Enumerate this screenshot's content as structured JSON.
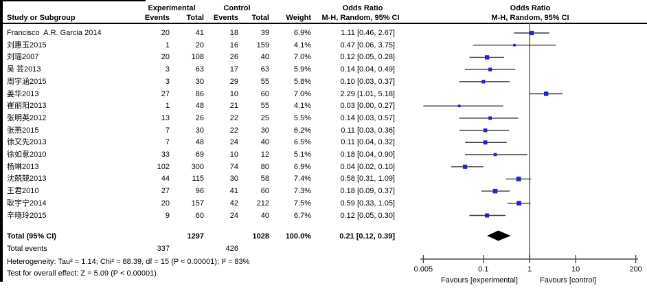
{
  "table": {
    "group_headers": {
      "experimental": "Experimental",
      "control": "Control",
      "odds_ratio_left": "Odds Ratio",
      "odds_ratio_right": "Odds Ratio"
    },
    "col_headers": {
      "study": "Study or Subgroup",
      "events_exp": "Events",
      "total_exp": "Total",
      "events_ctl": "Events",
      "total_ctl": "Total",
      "weight": "Weight",
      "mh_left": "M-H, Random, 95% CI",
      "mh_right": "M-H, Random, 95% CI"
    }
  },
  "chart_data": {
    "type": "forest",
    "effect_measure": "Odds Ratio, M-H, Random, 95% CI",
    "x_axis": {
      "scale": "log",
      "ticks": [
        0.005,
        0.1,
        1,
        10,
        200
      ],
      "tick_labels": [
        "0.005",
        "0.1",
        "1",
        "10",
        "200"
      ],
      "ref_line": 1,
      "left_label": "Favours [experimental]",
      "right_label": "Favours [control]"
    },
    "studies": [
      {
        "name": "Francisco  A.R. Garcia 2014",
        "events_exp": "20",
        "total_exp": "41",
        "events_ctl": "18",
        "total_ctl": "39",
        "weight": 6.9,
        "weight_label": "6.9%",
        "or": 1.11,
        "ci_low": 0.46,
        "ci_high": 2.67,
        "or_label": "1.11 [0.46, 2.67]"
      },
      {
        "name": "刘惠玉2015",
        "events_exp": "1",
        "total_exp": "20",
        "events_ctl": "16",
        "total_ctl": "159",
        "weight": 4.1,
        "weight_label": "4.1%",
        "or": 0.47,
        "ci_low": 0.06,
        "ci_high": 3.75,
        "or_label": "0.47 [0.06, 3.75]"
      },
      {
        "name": "刘瑶2007",
        "events_exp": "20",
        "total_exp": "108",
        "events_ctl": "26",
        "total_ctl": "40",
        "weight": 7.0,
        "weight_label": "7.0%",
        "or": 0.12,
        "ci_low": 0.05,
        "ci_high": 0.28,
        "or_label": "0.12 [0.05, 0.28]"
      },
      {
        "name": "吴 芸2013",
        "events_exp": "3",
        "total_exp": "63",
        "events_ctl": "17",
        "total_ctl": "63",
        "weight": 5.9,
        "weight_label": "5.9%",
        "or": 0.14,
        "ci_low": 0.04,
        "ci_high": 0.49,
        "or_label": "0.14 [0.04, 0.49]"
      },
      {
        "name": "周宇涵2015",
        "events_exp": "3",
        "total_exp": "30",
        "events_ctl": "29",
        "total_ctl": "55",
        "weight": 5.8,
        "weight_label": "5.8%",
        "or": 0.1,
        "ci_low": 0.03,
        "ci_high": 0.37,
        "or_label": "0.10 [0.03, 0.37]"
      },
      {
        "name": "姜华2013",
        "events_exp": "27",
        "total_exp": "86",
        "events_ctl": "10",
        "total_ctl": "60",
        "weight": 7.0,
        "weight_label": "7.0%",
        "or": 2.29,
        "ci_low": 1.01,
        "ci_high": 5.18,
        "or_label": "2.29 [1.01, 5.18]"
      },
      {
        "name": "崔丽阳2013",
        "events_exp": "1",
        "total_exp": "48",
        "events_ctl": "21",
        "total_ctl": "55",
        "weight": 4.1,
        "weight_label": "4.1%",
        "or": 0.03,
        "ci_low": 0.0,
        "ci_high": 0.27,
        "or_label": "0.03 [0.00, 0.27]"
      },
      {
        "name": "张明英2012",
        "events_exp": "13",
        "total_exp": "26",
        "events_ctl": "22",
        "total_ctl": "25",
        "weight": 5.5,
        "weight_label": "5.5%",
        "or": 0.14,
        "ci_low": 0.03,
        "ci_high": 0.57,
        "or_label": "0.14 [0.03, 0.57]"
      },
      {
        "name": "张燕2015",
        "events_exp": "7",
        "total_exp": "30",
        "events_ctl": "22",
        "total_ctl": "30",
        "weight": 6.2,
        "weight_label": "6.2%",
        "or": 0.11,
        "ci_low": 0.03,
        "ci_high": 0.36,
        "or_label": "0.11 [0.03, 0.36]"
      },
      {
        "name": "徐又先2013",
        "events_exp": "7",
        "total_exp": "48",
        "events_ctl": "24",
        "total_ctl": "40",
        "weight": 6.5,
        "weight_label": "6.5%",
        "or": 0.11,
        "ci_low": 0.04,
        "ci_high": 0.32,
        "or_label": "0.11 [0.04, 0.32]"
      },
      {
        "name": "徐如意2010",
        "events_exp": "33",
        "total_exp": "69",
        "events_ctl": "10",
        "total_ctl": "12",
        "weight": 5.1,
        "weight_label": "5.1%",
        "or": 0.18,
        "ci_low": 0.04,
        "ci_high": 0.9,
        "or_label": "0.18 [0.04, 0.90]"
      },
      {
        "name": "杨琳2013",
        "events_exp": "102",
        "total_exp": "300",
        "events_ctl": "74",
        "total_ctl": "80",
        "weight": 6.9,
        "weight_label": "6.9%",
        "or": 0.04,
        "ci_low": 0.02,
        "ci_high": 0.1,
        "or_label": "0.04 [0.02, 0.10]"
      },
      {
        "name": "沈兢兢2013",
        "events_exp": "44",
        "total_exp": "115",
        "events_ctl": "30",
        "total_ctl": "58",
        "weight": 7.4,
        "weight_label": "7.4%",
        "or": 0.58,
        "ci_low": 0.31,
        "ci_high": 1.09,
        "or_label": "0.58 [0.31, 1.09]"
      },
      {
        "name": "王君2010",
        "events_exp": "27",
        "total_exp": "96",
        "events_ctl": "41",
        "total_ctl": "60",
        "weight": 7.3,
        "weight_label": "7.3%",
        "or": 0.18,
        "ci_low": 0.09,
        "ci_high": 0.37,
        "or_label": "0.18 [0.09, 0.37]"
      },
      {
        "name": "耿宇宁2014",
        "events_exp": "20",
        "total_exp": "157",
        "events_ctl": "42",
        "total_ctl": "212",
        "weight": 7.5,
        "weight_label": "7.5%",
        "or": 0.59,
        "ci_low": 0.33,
        "ci_high": 1.05,
        "or_label": "0.59 [0.33, 1.05]"
      },
      {
        "name": "辛晓玲2015",
        "events_exp": "9",
        "total_exp": "60",
        "events_ctl": "24",
        "total_ctl": "40",
        "weight": 6.7,
        "weight_label": "6.7%",
        "or": 0.12,
        "ci_low": 0.05,
        "ci_high": 0.3,
        "or_label": "0.12 [0.05, 0.30]"
      }
    ],
    "total": {
      "label": "Total (95% CI)",
      "total_exp": "1297",
      "total_ctl": "1028",
      "weight_label": "100.0%",
      "or": 0.21,
      "ci_low": 0.12,
      "ci_high": 0.39,
      "or_label": "0.21 [0.12, 0.39]"
    },
    "total_events": {
      "label": "Total events",
      "exp": "337",
      "ctl": "426"
    },
    "heterogeneity": "Heterogeneity: Tau² = 1.14; Chi² = 88.39, df = 15 (P < 0.00001); I² = 83%",
    "overall_effect": "Test for overall effect: Z = 5.09 (P < 0.00001)",
    "colors": {
      "marker": "#2222cf",
      "ci_line": "#3c3c3c",
      "axis": "#4a4a4a",
      "ref_line": "#7d7d7d",
      "diamond": "#000000"
    }
  }
}
